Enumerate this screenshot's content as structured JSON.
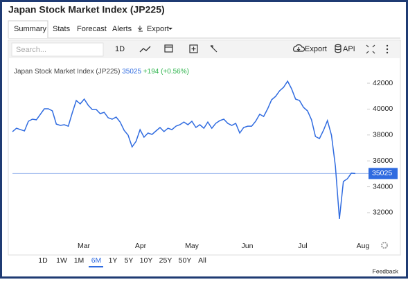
{
  "header": {
    "title": "Japan Stock Market Index (JP225)"
  },
  "tabs": [
    "Summary",
    "Stats",
    "Forecast",
    "Alerts",
    "Export"
  ],
  "toolbar": {
    "search": "Search...",
    "interval": "1D",
    "export": "Export",
    "api": "API"
  },
  "chart_data": {
    "type": "line",
    "title": "Japan Stock Market Index (JP225)",
    "change": "+194 (+0.56%)",
    "color": "#2f6be0",
    "values": [
      38250,
      38520,
      38410,
      38310,
      39060,
      39220,
      39170,
      39600,
      40020,
      40020,
      39860,
      38840,
      38740,
      38790,
      38680,
      39700,
      40660,
      40400,
      40770,
      40290,
      39970,
      39970,
      39650,
      39750,
      39330,
      39220,
      39380,
      39000,
      38360,
      37990,
      37080,
      37510,
      38410,
      37830,
      38150,
      38040,
      38310,
      38580,
      38260,
      38520,
      38410,
      38680,
      38790,
      39000,
      38790,
      39060,
      38580,
      38790,
      38520,
      39000,
      38520,
      38900,
      39110,
      39220,
      38900,
      38740,
      38900,
      38150,
      38580,
      38680,
      38680,
      39060,
      39600,
      39430,
      40020,
      40720,
      40980,
      41410,
      41680,
      42160,
      41570,
      40770,
      40660,
      40130,
      39860,
      39170,
      37880,
      37720,
      38360,
      39110,
      37990,
      35580,
      31520,
      34410,
      34620,
      35050,
      35025
    ],
    "ylim": [
      30230,
      43340
    ],
    "yticks": [
      32000,
      34000,
      36000,
      38000,
      40000,
      42000
    ],
    "months": [
      "Mar",
      "Apr",
      "May",
      "Jun",
      "Jul",
      "Aug"
    ]
  },
  "ranges": [
    "1D",
    "1W",
    "1M",
    "6M",
    "1Y",
    "5Y",
    "10Y",
    "25Y",
    "50Y",
    "All"
  ],
  "feedback": "Feedback"
}
